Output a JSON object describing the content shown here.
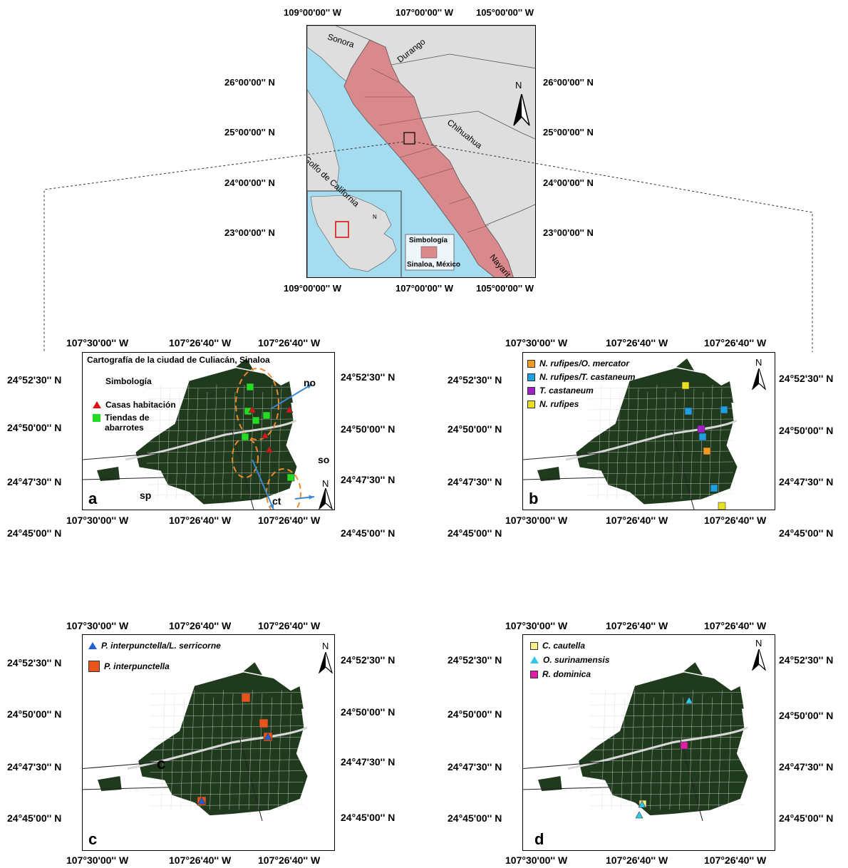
{
  "top_map": {
    "x_ticks_top": [
      "109°00'00'' W",
      "107°00'00'' W",
      "105°00'00'' W"
    ],
    "x_ticks_bottom": [
      "109°00'00'' W",
      "107°00'00'' W",
      "105°00'00'' W"
    ],
    "y_ticks_left": [
      "26°00'00'' N",
      "25°00'00'' N",
      "24°00'00'' N",
      "23°00'00'' N"
    ],
    "y_ticks_right": [
      "26°00'00'' N",
      "25°00'00'' N",
      "24°00'00'' N",
      "23°00'00'' N"
    ],
    "places": {
      "sonora": "Sonora",
      "durango": "Durango",
      "chihuahua": "Chihuahua",
      "golfo": "Golfo de California",
      "nayarit": "Nayarit"
    },
    "legend_title": "Simbología",
    "legend_item": "Sinaloa, México",
    "north": "N",
    "colors": {
      "sea": "#a6dcef",
      "land": "#dedede",
      "sinaloa": "#d9888c"
    }
  },
  "panel_a": {
    "letter": "a",
    "title": "Cartografía de la ciudad de Culiacán, Sinaloa",
    "legend_title": "Simbología",
    "legend": [
      {
        "label": "Casas habitación",
        "color": "#d11a1a",
        "shape": "triangle"
      },
      {
        "label": "Tiendas de abarrotes",
        "color": "#22dd22",
        "shape": "square"
      }
    ],
    "directions": [
      "no",
      "so",
      "ct",
      "sp"
    ],
    "x_ticks_top": [
      "107°30'00'' W",
      "107°26'40'' W",
      "107°26'40'' W"
    ],
    "x_ticks_bottom": [
      "107°30'00'' W",
      "107°26'40'' W",
      "107°26'40'' W"
    ],
    "y_ticks_left": [
      "24°52'30'' N",
      "24°50'00'' N",
      "24°47'30'' N",
      "24°45'00'' N"
    ],
    "y_ticks_right": [
      "24°52'30'' N",
      "24°50'00'' N",
      "24°47'30'' N",
      "24°45'00'' N"
    ],
    "north": "N"
  },
  "panel_b": {
    "letter": "b",
    "legend": [
      {
        "label": "N. rufipes/O. mercator",
        "color": "#f39a1f"
      },
      {
        "label": "N. rufipes/T. castaneum",
        "color": "#1e9fe0"
      },
      {
        "label": "T. castaneum",
        "color": "#a020c8"
      },
      {
        "label": "N. rufipes",
        "color": "#e8e020"
      }
    ],
    "x_ticks_top": [
      "107°30'00'' W",
      "107°26'40'' W",
      "107°26'40'' W"
    ],
    "x_ticks_bottom": [
      "107°30'00'' W",
      "107°26'40'' W",
      "107°26'40'' W"
    ],
    "y_ticks_left": [
      "24°52'30'' N",
      "24°50'00'' N",
      "24°47'30'' N",
      "24°45'00'' N"
    ],
    "y_ticks_right": [
      "24°52'30'' N",
      "24°50'00'' N",
      "24°47'30'' N",
      "24°45'00'' N"
    ],
    "north": "N"
  },
  "panel_c": {
    "letter": "c",
    "inner_letter": "c",
    "legend": [
      {
        "label": "P. interpunctella/L. serricorne",
        "color": "#1f5fd6",
        "shape": "triangle"
      },
      {
        "label": "P. interpunctella",
        "color": "#e8541c",
        "shape": "square"
      }
    ],
    "x_ticks_top": [
      "107°30'00'' W",
      "107°26'40'' W",
      "107°26'40'' W"
    ],
    "x_ticks_bottom": [
      "107°30'00'' W",
      "107°26'40'' W",
      "107°26'40'' W"
    ],
    "y_ticks_left": [
      "24°52'30'' N",
      "24°50'00'' N",
      "24°47'30'' N",
      "24°45'00'' N"
    ],
    "y_ticks_right": [
      "24°52'30'' N",
      "24°50'00'' N",
      "24°47'30'' N",
      "24°45'00'' N"
    ],
    "north": "N"
  },
  "panel_d": {
    "letter": "d",
    "legend": [
      {
        "label": "C. cautella",
        "color": "#f7f08a",
        "shape": "square"
      },
      {
        "label": "O. surinamensis",
        "color": "#2fc8e8",
        "shape": "triangle"
      },
      {
        "label": "R. dominica",
        "color": "#e01ca8",
        "shape": "square"
      }
    ],
    "x_ticks_top": [
      "107°30'00'' W",
      "107°26'40'' W",
      "107°26'40'' W"
    ],
    "x_ticks_bottom": [
      "107°30'00'' W",
      "107°26'40'' W",
      "107°26'40'' W"
    ],
    "y_ticks_left": [
      "24°52'30'' N",
      "24°50'00'' N",
      "24°47'30'' N",
      "24°45'00'' N"
    ],
    "y_ticks_right": [
      "24°52'30'' N",
      "24°50'00'' N",
      "24°47'30'' N",
      "24°45'00'' N"
    ],
    "north": "N"
  },
  "colors": {
    "city": "#1f3a1d",
    "city_road": "#d8d8d8"
  }
}
